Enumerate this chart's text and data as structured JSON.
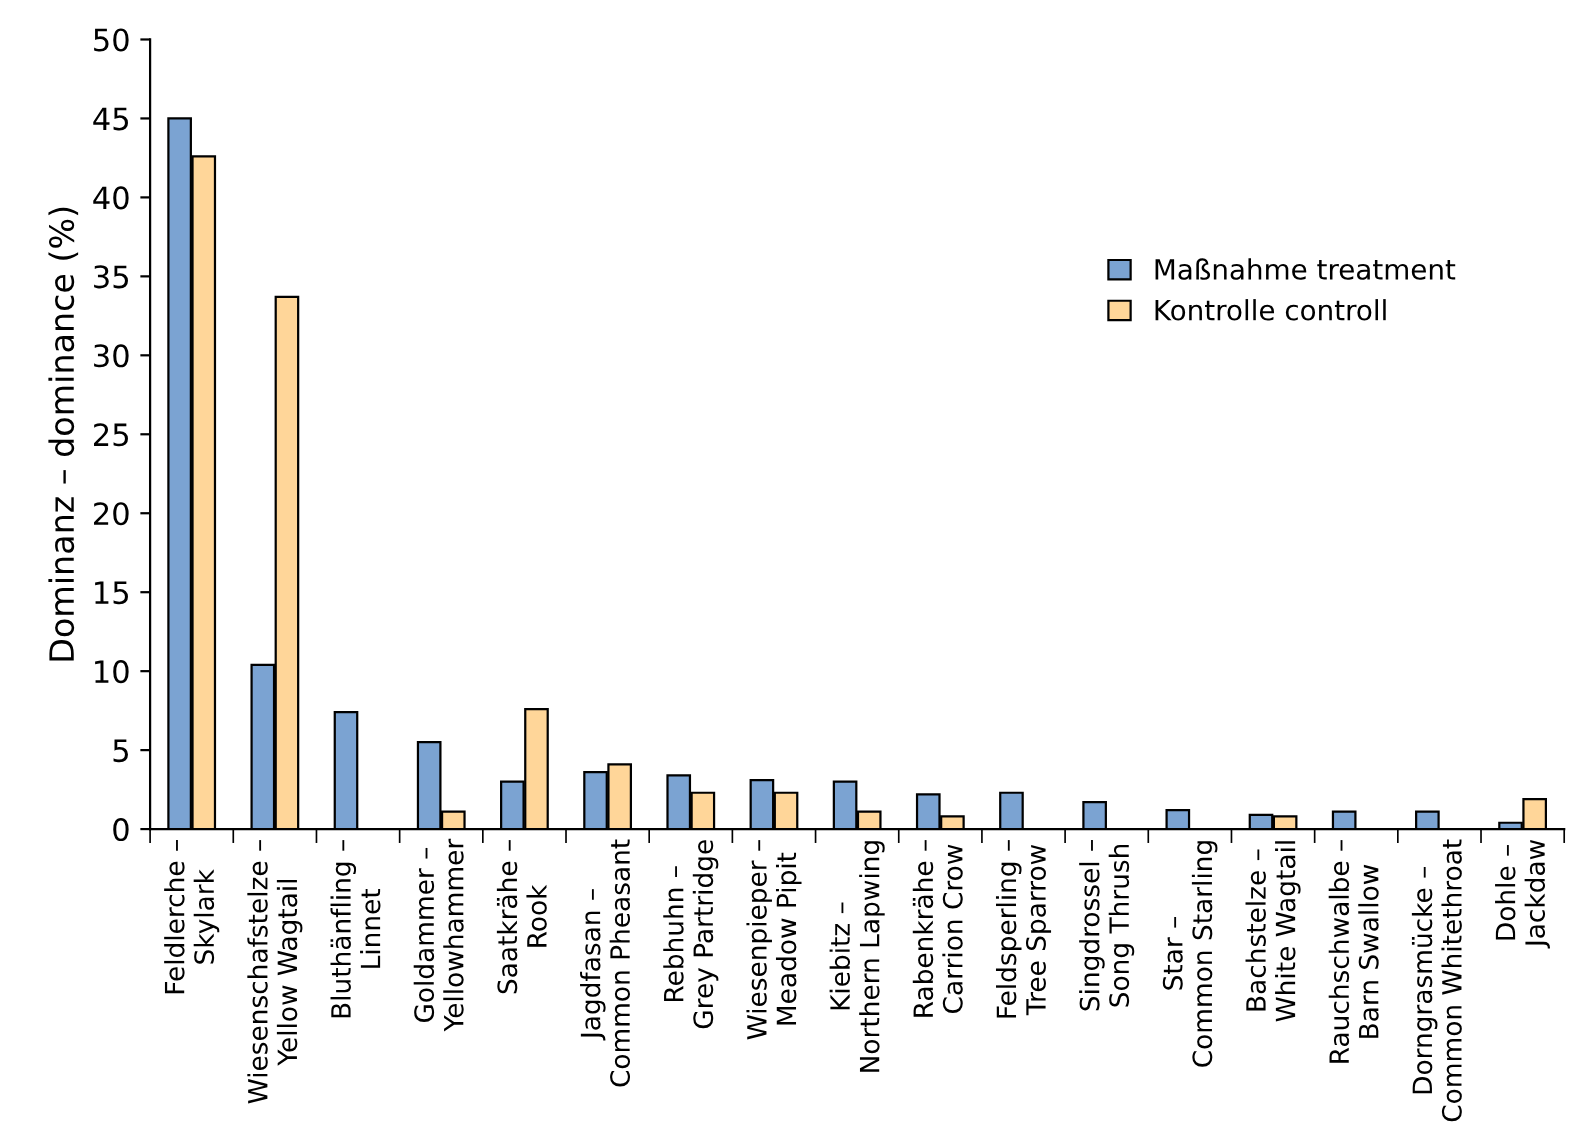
{
  "chart_data": {
    "type": "bar",
    "ylabel": "Dominanz – dominance (%)",
    "categories": [
      "Feldlerche –\nSkylark",
      "Wiesenschafstelze –\nYellow Wagtail",
      "Bluthänfling –\nLinnet",
      "Goldammer –\nYellowhammer",
      "Saatkrähe –\nRook",
      "Jagdfasan –\nCommon Pheasant",
      "Rebhuhn –\nGrey Partridge",
      "Wiesenpieper –\nMeadow Pipit",
      "Kiebitz –\nNorthern Lapwing",
      "Rabenkrähe –\nCarrion Crow",
      "Feldsperling –\nTree Sparrow",
      "Singdrossel –\nSong Thrush",
      "Star –\nCommon Starling",
      "Bachstelze –\nWhite Wagtail",
      "Rauchschwalbe –\nBarn Swallow",
      "Dorngrasmücke –\nCommon Whitethroat",
      "Dohle –\nJackdaw"
    ],
    "series": [
      {
        "name": "Maßnahme treatment",
        "color": "#7ba3d2",
        "values": [
          45,
          10.4,
          7.4,
          5.5,
          3.0,
          3.6,
          3.4,
          3.1,
          3.0,
          2.2,
          2.3,
          1.7,
          1.2,
          0.9,
          1.1,
          1.1,
          0.4
        ]
      },
      {
        "name": "Kontrolle controll",
        "color": "#ffd699",
        "values": [
          42.6,
          33.7,
          null,
          1.1,
          7.6,
          4.1,
          2.3,
          2.3,
          1.1,
          0.8,
          null,
          null,
          null,
          0.8,
          null,
          null,
          1.9
        ]
      }
    ],
    "ylim": [
      0,
      50
    ],
    "yticks": [
      0,
      5,
      10,
      15,
      20,
      25,
      30,
      35,
      40,
      45,
      50
    ],
    "grid": false,
    "legend": "right"
  }
}
